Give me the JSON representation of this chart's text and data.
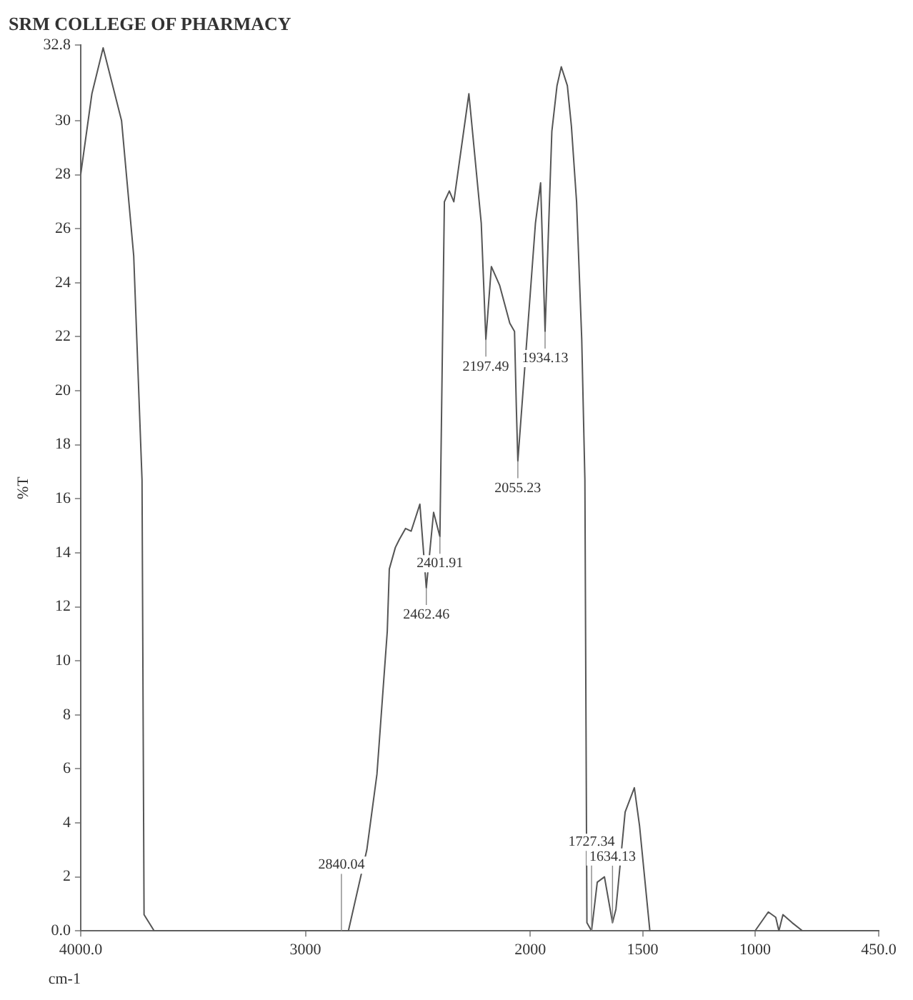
{
  "chart_data": {
    "type": "line",
    "title": "SRM COLLEGE OF PHARMACY",
    "xlabel": "cm-1",
    "ylabel": "%T",
    "xlim": [
      4000,
      450
    ],
    "ylim": [
      0,
      32.8
    ],
    "xticks": [
      {
        "value": 4000,
        "label": "4000.0"
      },
      3000,
      2000,
      1500,
      1000,
      {
        "value": 450,
        "label": "450.0"
      }
    ],
    "yticks": [
      {
        "value": 0,
        "label": "0.0"
      },
      2,
      4,
      6,
      8,
      10,
      12,
      14,
      16,
      18,
      20,
      22,
      24,
      26,
      28,
      30,
      32.8
    ],
    "grid": false,
    "legend": false,
    "marker": "none",
    "line_style": "solid",
    "series": [
      {
        "color": "#555555",
        "x": [
          4000,
          3950,
          3900,
          3818,
          3764,
          3727,
          3718,
          3673,
          2836,
          2809,
          2727,
          2682,
          2636,
          2627,
          2600,
          2582,
          2555,
          2530,
          2491,
          2462.46,
          2430,
          2401.91,
          2395,
          2382,
          2360,
          2340,
          2273,
          2218,
          2197.49,
          2173,
          2136,
          2091,
          2070,
          2062,
          2055.23,
          2000,
          1977,
          1954,
          1934.13,
          1904,
          1881,
          1862,
          1835,
          1817,
          1794,
          1771,
          1757,
          1748,
          1727.34,
          1702,
          1670,
          1634.13,
          1619,
          1578,
          1537,
          1514,
          1468,
          1000,
          941,
          908,
          894,
          876,
          835,
          789,
          450
        ],
        "values": [
          28,
          31,
          32.7,
          30,
          25,
          16.7,
          0.6,
          0,
          0,
          0,
          3,
          5.8,
          11.1,
          13.4,
          14.2,
          14.5,
          14.9,
          14.8,
          15.8,
          12.7,
          15.5,
          14.6,
          18.9,
          27,
          27.4,
          27,
          31,
          26.2,
          21.9,
          24.6,
          23.9,
          22.5,
          22.2,
          19.4,
          17.4,
          23.6,
          26.2,
          27.7,
          22.2,
          29.6,
          31.3,
          32,
          31.3,
          29.8,
          27,
          21.9,
          16.7,
          0.3,
          0,
          1.8,
          2,
          0.3,
          0.8,
          4.4,
          5.3,
          3.9,
          0,
          0,
          0.7,
          0.5,
          0,
          0.6,
          0.3,
          0,
          0
        ]
      }
    ],
    "annotations": [
      {
        "text": "2840.04",
        "x": 2840.04,
        "y": 0
      },
      {
        "text": "2462.46",
        "x": 2462.46,
        "y": 12.7
      },
      {
        "text": "2401.91",
        "x": 2401.91,
        "y": 14.6
      },
      {
        "text": "2197.49",
        "x": 2197.49,
        "y": 21.9
      },
      {
        "text": "2055.23",
        "x": 2055.23,
        "y": 17.4
      },
      {
        "text": "1934.13",
        "x": 1934.13,
        "y": 22.2
      },
      {
        "text": "1727.34",
        "x": 1727.34,
        "y": 0
      },
      {
        "text": "1634.13",
        "x": 1634.13,
        "y": 0.3
      }
    ]
  }
}
